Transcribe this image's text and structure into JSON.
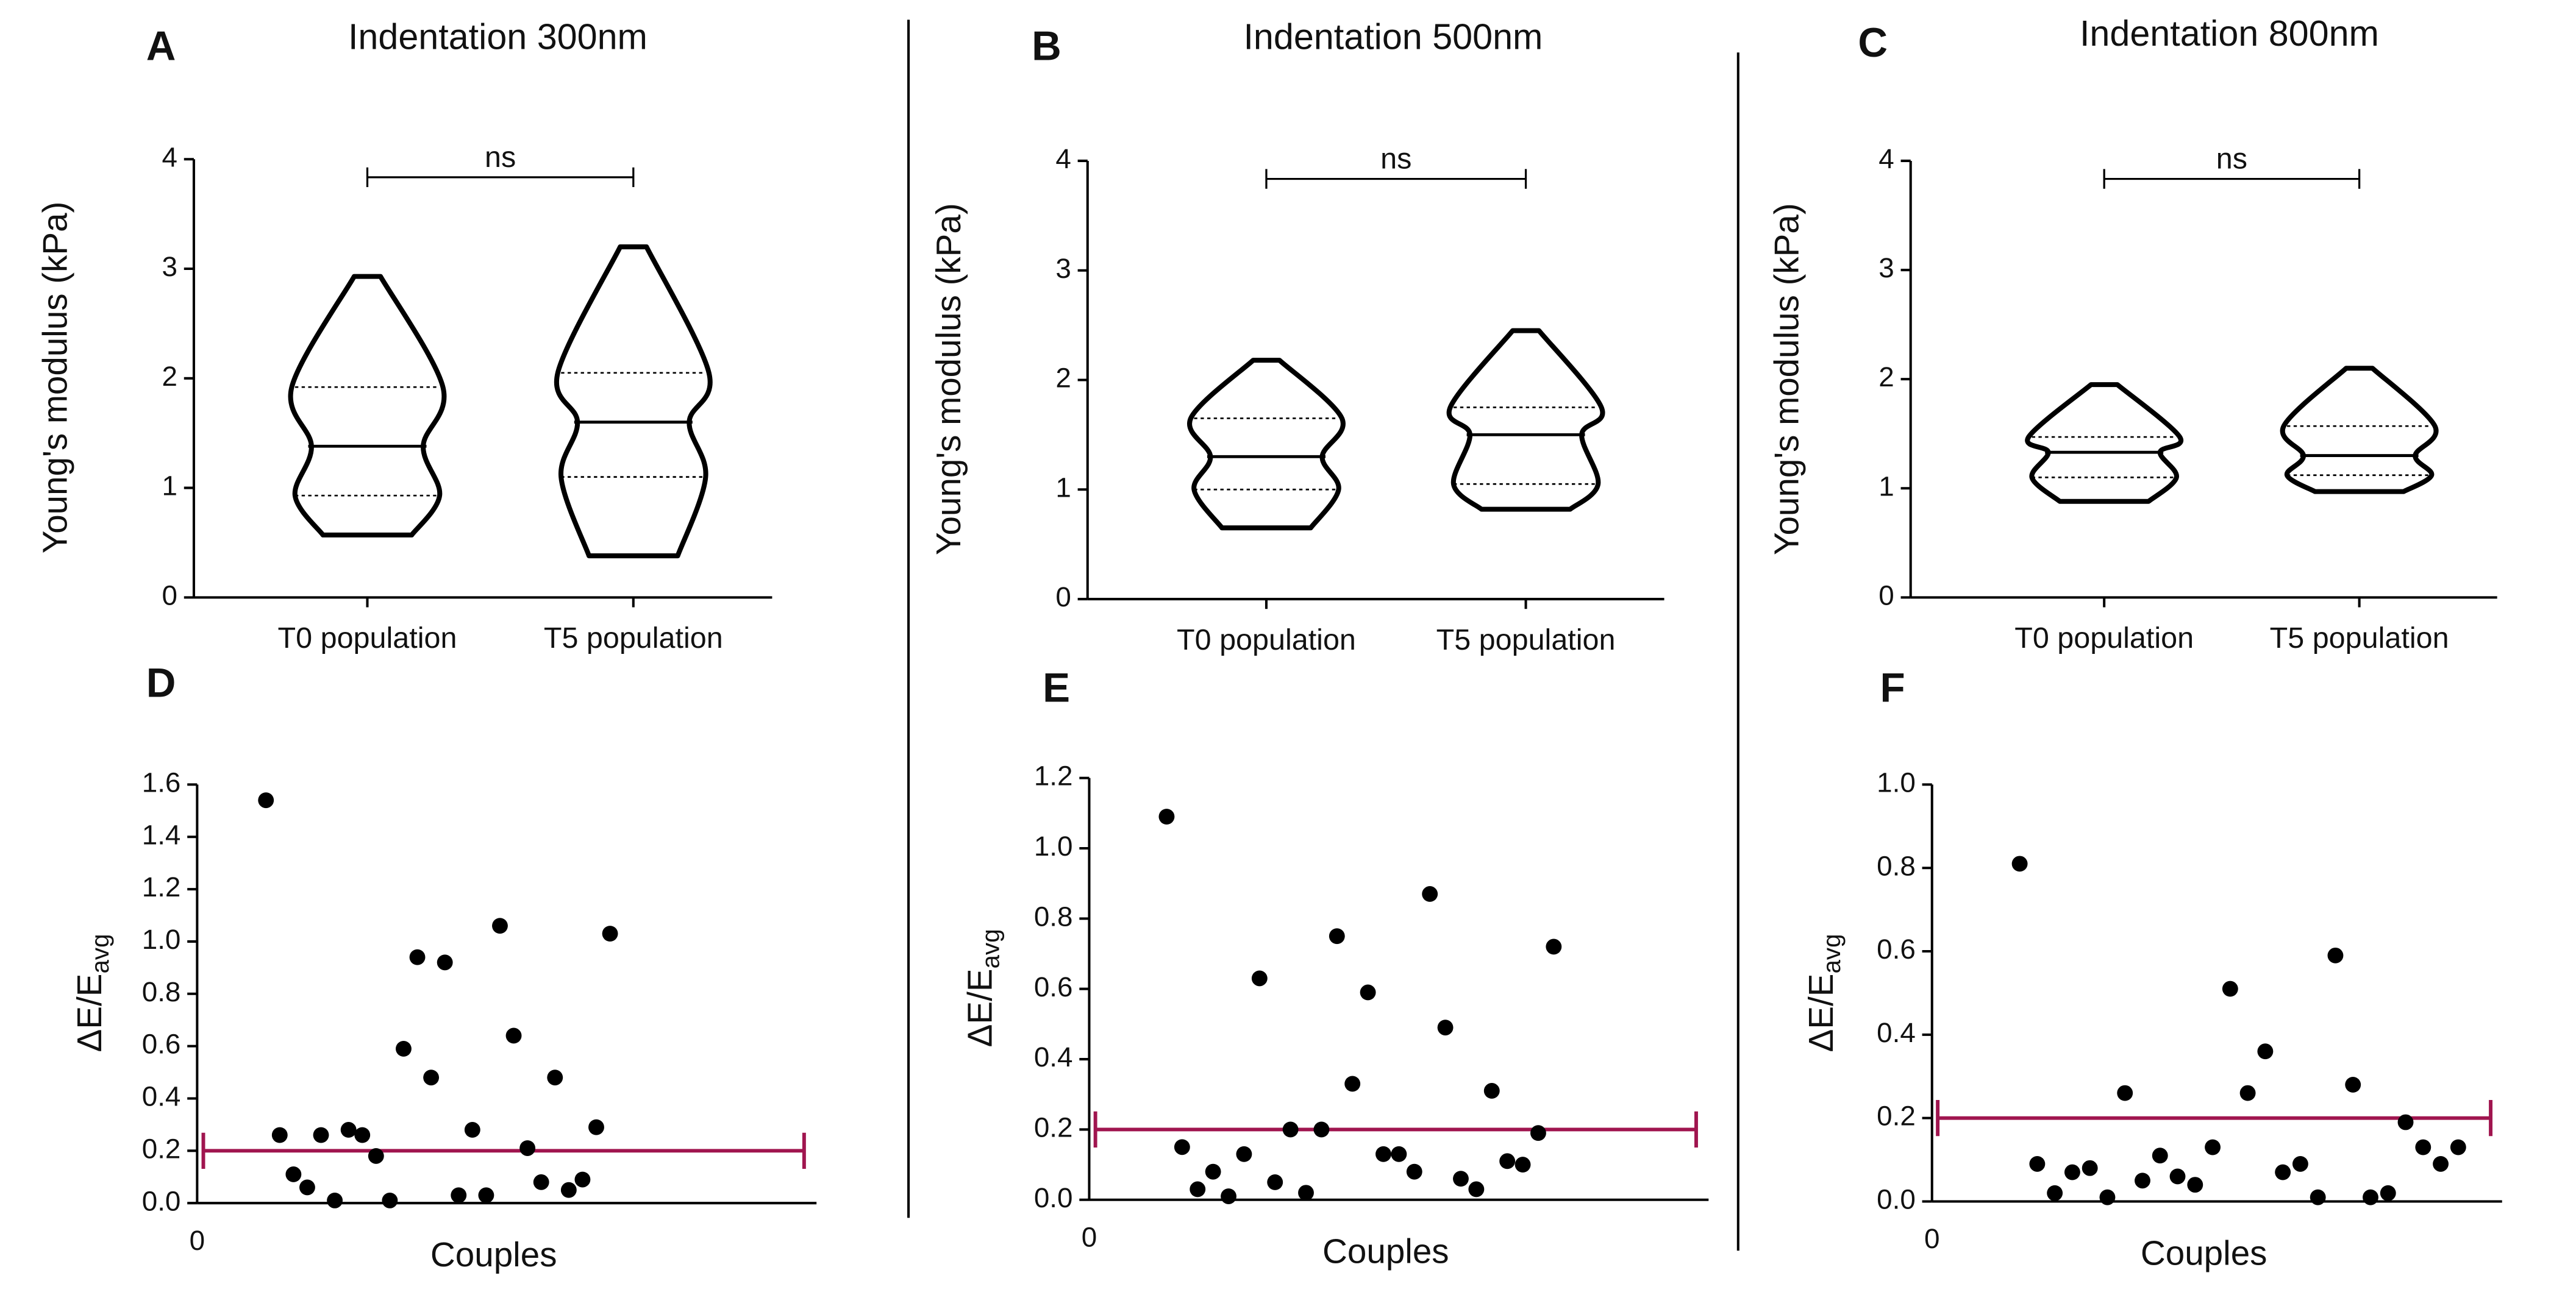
{
  "chart_data": [
    {
      "type": "violin",
      "label": "A",
      "title": "Indentation 300nm",
      "ylabel": "Young's modulus (kPa)",
      "categories": [
        "T0 population",
        "T5 population"
      ],
      "min": [
        0.57,
        0.38
      ],
      "q1": [
        0.93,
        1.1
      ],
      "median": [
        1.38,
        1.6
      ],
      "q3": [
        1.92,
        2.05
      ],
      "max": [
        2.93,
        3.2
      ],
      "annotation": "ns",
      "ylim": [
        0,
        4
      ],
      "yticks": [
        0,
        1,
        2,
        3,
        4
      ],
      "color": "#000000"
    },
    {
      "type": "violin",
      "label": "B",
      "title": "Indentation 500nm",
      "ylabel": "Young's modulus (kPa)",
      "categories": [
        "T0 population",
        "T5 population"
      ],
      "min": [
        0.65,
        0.82
      ],
      "q1": [
        1.0,
        1.05
      ],
      "median": [
        1.3,
        1.5
      ],
      "q3": [
        1.65,
        1.75
      ],
      "max": [
        2.18,
        2.45
      ],
      "annotation": "ns",
      "ylim": [
        0,
        4
      ],
      "yticks": [
        0,
        1,
        2,
        3,
        4
      ],
      "color": "#000000"
    },
    {
      "type": "violin",
      "label": "C",
      "title": "Indentation 800nm",
      "ylabel": "Young's modulus (kPa)",
      "categories": [
        "T0 population",
        "T5 population"
      ],
      "min": [
        0.88,
        0.97
      ],
      "q1": [
        1.1,
        1.12
      ],
      "median": [
        1.33,
        1.3
      ],
      "q3": [
        1.47,
        1.57
      ],
      "max": [
        1.95,
        2.1
      ],
      "annotation": "ns",
      "ylim": [
        0,
        4
      ],
      "yticks": [
        0,
        1,
        2,
        3,
        4
      ],
      "color": "#000000"
    },
    {
      "type": "scatter",
      "label": "D",
      "ylabel": "ΔE/E",
      "ylabel_sub": "avg",
      "xlabel": "Couples",
      "x": [
        5,
        6,
        7,
        8,
        9,
        10,
        11,
        12,
        13,
        14,
        15,
        16,
        17,
        18,
        19,
        20,
        21,
        22,
        23,
        24,
        25,
        26,
        27,
        28,
        29,
        30
      ],
      "values": [
        1.54,
        0.26,
        0.11,
        0.06,
        0.26,
        0.01,
        0.28,
        0.26,
        0.18,
        0.01,
        0.59,
        0.94,
        0.48,
        0.92,
        0.03,
        0.28,
        0.03,
        1.06,
        0.64,
        0.21,
        0.08,
        0.48,
        0.05,
        0.09,
        0.29,
        1.03
      ],
      "color": "#000000",
      "reference_line": {
        "y": 0.2,
        "color": "#a0154f"
      },
      "xlim": [
        0,
        45
      ],
      "xticks": [
        0
      ],
      "ylim": [
        0,
        1.6
      ],
      "yticks": [
        {
          "value": 0,
          "label": "0.0"
        },
        0.2,
        0.4,
        0.6,
        0.8,
        {
          "value": 1,
          "label": "1.0"
        },
        1.2,
        1.4,
        1.6
      ]
    },
    {
      "type": "scatter",
      "label": "E",
      "ylabel": "ΔE/E",
      "ylabel_sub": "avg",
      "xlabel": "Couples",
      "x": [
        5,
        6,
        7,
        8,
        9,
        10,
        11,
        12,
        13,
        14,
        15,
        16,
        17,
        18,
        19,
        20,
        21,
        22,
        23,
        24,
        25,
        26,
        27,
        28,
        29,
        30
      ],
      "values": [
        1.09,
        0.15,
        0.03,
        0.08,
        0.01,
        0.13,
        0.63,
        0.05,
        0.2,
        0.02,
        0.2,
        0.75,
        0.33,
        0.59,
        0.13,
        0.13,
        0.08,
        0.87,
        0.49,
        0.06,
        0.03,
        0.31,
        0.11,
        0.1,
        0.19,
        0.72
      ],
      "color": "#000000",
      "reference_line": {
        "y": 0.2,
        "color": "#a0154f"
      },
      "xlim": [
        0,
        40
      ],
      "xticks": [
        0
      ],
      "ylim": [
        0,
        1.2
      ],
      "yticks": [
        {
          "value": 0,
          "label": "0.0"
        },
        0.2,
        0.4,
        0.6,
        0.8,
        {
          "value": 1,
          "label": "1.0"
        },
        1.2
      ]
    },
    {
      "type": "scatter",
      "label": "F",
      "ylabel": "ΔE/E",
      "ylabel_sub": "avg",
      "xlabel": "Couples",
      "x": [
        5,
        6,
        7,
        8,
        9,
        10,
        11,
        12,
        13,
        14,
        15,
        16,
        17,
        18,
        19,
        20,
        21,
        22,
        23,
        24,
        25,
        26,
        27,
        28,
        29,
        30
      ],
      "values": [
        0.81,
        0.09,
        0.02,
        0.07,
        0.08,
        0.01,
        0.26,
        0.05,
        0.11,
        0.06,
        0.04,
        0.13,
        0.51,
        0.26,
        0.36,
        0.07,
        0.09,
        0.01,
        0.59,
        0.28,
        0.01,
        0.02,
        0.19,
        0.13,
        0.09,
        0.13
      ],
      "color": "#000000",
      "reference_line": {
        "y": 0.2,
        "color": "#a0154f"
      },
      "xlim": [
        0,
        32.5
      ],
      "xticks": [
        0
      ],
      "ylim": [
        0,
        1
      ],
      "yticks": [
        {
          "value": 0,
          "label": "0.0"
        },
        0.2,
        0.4,
        0.6,
        0.8,
        {
          "value": 1,
          "label": "1.0"
        }
      ]
    }
  ]
}
